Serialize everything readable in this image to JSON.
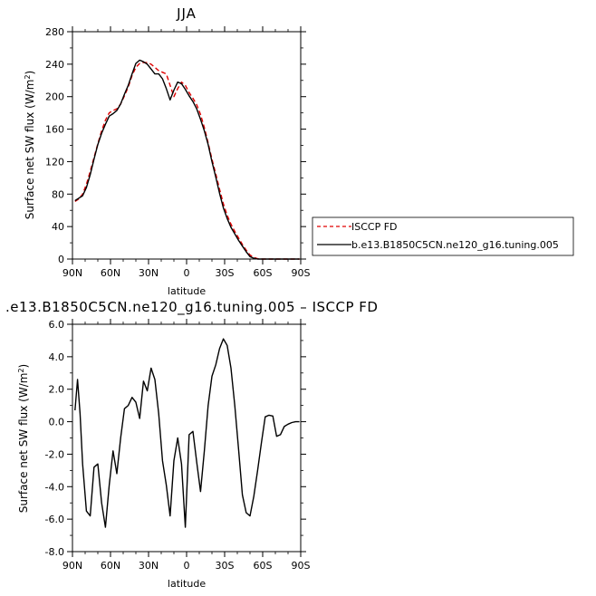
{
  "chart_data": [
    {
      "type": "line",
      "title": "JJA",
      "xlabel": "latitude",
      "ylabel": "Surface net SW flux (W/m",
      "ylabel_sup": "2",
      "ylabel_close": ")",
      "xlim": [
        90,
        -90
      ],
      "ylim": [
        0,
        280
      ],
      "x_ticks": [
        90,
        60,
        30,
        0,
        -30,
        -60,
        -90
      ],
      "x_tick_labels": [
        "90N",
        "60N",
        "30N",
        "0",
        "30S",
        "60S",
        "90S"
      ],
      "y_ticks": [
        0,
        40,
        80,
        120,
        160,
        200,
        240,
        280
      ],
      "y_tick_labels": [
        "0",
        "40",
        "80",
        "120",
        "160",
        "200",
        "240",
        "280"
      ],
      "legend_position": "right, outside plot",
      "series": [
        {
          "name": "ISCCP FD",
          "color": "#e00000",
          "dash": "dashed",
          "x": [
            88,
            85,
            82,
            79,
            76,
            73,
            70,
            67,
            64,
            61,
            58,
            55,
            52,
            49,
            46,
            43,
            40,
            37,
            34,
            31,
            28,
            25,
            22,
            19,
            16,
            13,
            10,
            7,
            4,
            1,
            -2,
            -5,
            -8,
            -11,
            -14,
            -17,
            -20,
            -23,
            -26,
            -29,
            -32,
            -35,
            -38,
            -41,
            -44,
            -47,
            -50,
            -53,
            -56,
            -59,
            -62,
            -65,
            -68,
            -71,
            -74,
            -77,
            -80,
            -83,
            -86,
            -89
          ],
          "y": [
            71,
            74,
            80,
            92,
            108,
            125,
            142,
            158,
            171,
            180,
            183,
            185,
            191,
            201,
            212,
            226,
            236,
            241,
            242,
            242,
            240,
            236,
            232,
            230,
            228,
            214,
            200,
            210,
            218,
            214,
            205,
            198,
            190,
            178,
            162,
            143,
            123,
            105,
            86,
            68,
            54,
            43,
            34,
            26,
            18,
            11,
            5,
            2,
            0.5,
            0,
            0,
            0,
            0,
            0,
            0,
            0,
            0,
            0,
            0,
            0
          ]
        },
        {
          "name": "b.e13.B1850C5CN.ne120_g16.tuning.005",
          "color": "#000000",
          "dash": "solid",
          "x": [
            88,
            85,
            82,
            79,
            76,
            73,
            70,
            67,
            64,
            61,
            58,
            55,
            52,
            49,
            46,
            43,
            40,
            37,
            34,
            31,
            28,
            25,
            22,
            19,
            16,
            13,
            10,
            7,
            4,
            1,
            -2,
            -5,
            -8,
            -11,
            -14,
            -17,
            -20,
            -23,
            -26,
            -29,
            -32,
            -35,
            -38,
            -41,
            -44,
            -47,
            -50,
            -53,
            -56,
            -59,
            -62,
            -65,
            -68,
            -71,
            -74,
            -77,
            -80,
            -83,
            -86,
            -89
          ],
          "y": [
            72,
            75,
            78,
            88,
            104,
            123,
            141,
            155,
            166,
            176,
            179,
            183,
            191,
            203,
            214,
            228,
            241,
            245,
            243,
            240,
            234,
            228,
            228,
            222,
            210,
            196,
            208,
            218,
            216,
            209,
            201,
            194,
            185,
            172,
            158,
            141,
            120,
            101,
            81,
            63,
            50,
            39,
            31,
            23,
            16,
            9,
            3,
            1,
            0,
            0,
            0,
            0,
            0,
            0,
            0,
            0,
            0,
            0,
            0,
            0
          ]
        }
      ]
    },
    {
      "type": "line",
      "title": ".e13.B1850C5CN.ne120_g16.tuning.005 – ISCCP FD",
      "xlabel": "latitude",
      "ylabel": "Surface net SW flux (W/m",
      "ylabel_sup": "2",
      "ylabel_close": ")",
      "xlim": [
        90,
        -90
      ],
      "ylim": [
        -8,
        6
      ],
      "x_ticks": [
        90,
        60,
        30,
        0,
        -30,
        -60,
        -90
      ],
      "x_tick_labels": [
        "90N",
        "60N",
        "30N",
        "0",
        "30S",
        "60S",
        "90S"
      ],
      "y_ticks": [
        -8,
        -6,
        -4,
        -2,
        0,
        2,
        4,
        6
      ],
      "y_tick_labels": [
        "-8.0",
        "-6.0",
        "-4.0",
        "-2.0",
        "0.0",
        "2.0",
        "4.0",
        "6.0"
      ],
      "series": [
        {
          "color": "#000000",
          "dash": "solid",
          "x": [
            88,
            86,
            84,
            82,
            79,
            76,
            73,
            70,
            67,
            64,
            61,
            58,
            55,
            52,
            49,
            46,
            43,
            40,
            37,
            34,
            31,
            28,
            25,
            22,
            19,
            16,
            13,
            10,
            7,
            4,
            1,
            -2,
            -5,
            -8,
            -11,
            -14,
            -17,
            -20,
            -23,
            -26,
            -29,
            -32,
            -35,
            -38,
            -41,
            -44,
            -47,
            -50,
            -53,
            -56,
            -59,
            -62,
            -65,
            -68,
            -71,
            -74,
            -77,
            -80,
            -83,
            -86,
            -89
          ],
          "y": [
            0.7,
            2.6,
            0.5,
            -2.6,
            -5.5,
            -5.8,
            -2.8,
            -2.6,
            -5.0,
            -6.5,
            -3.9,
            -1.8,
            -3.2,
            -1.0,
            0.8,
            1.0,
            1.5,
            1.2,
            0.2,
            2.5,
            1.9,
            3.3,
            2.6,
            0.5,
            -2.4,
            -3.9,
            -5.8,
            -2.4,
            -1.0,
            -2.6,
            -6.5,
            -0.8,
            -0.6,
            -2.5,
            -4.3,
            -1.8,
            1.0,
            2.8,
            3.5,
            4.5,
            5.1,
            4.7,
            3.3,
            1.0,
            -1.7,
            -4.5,
            -5.6,
            -5.8,
            -4.6,
            -3.0,
            -1.3,
            0.3,
            0.4,
            0.35,
            -0.9,
            -0.8,
            -0.3,
            -0.15,
            -0.05,
            0.0,
            0.0
          ]
        }
      ]
    }
  ]
}
